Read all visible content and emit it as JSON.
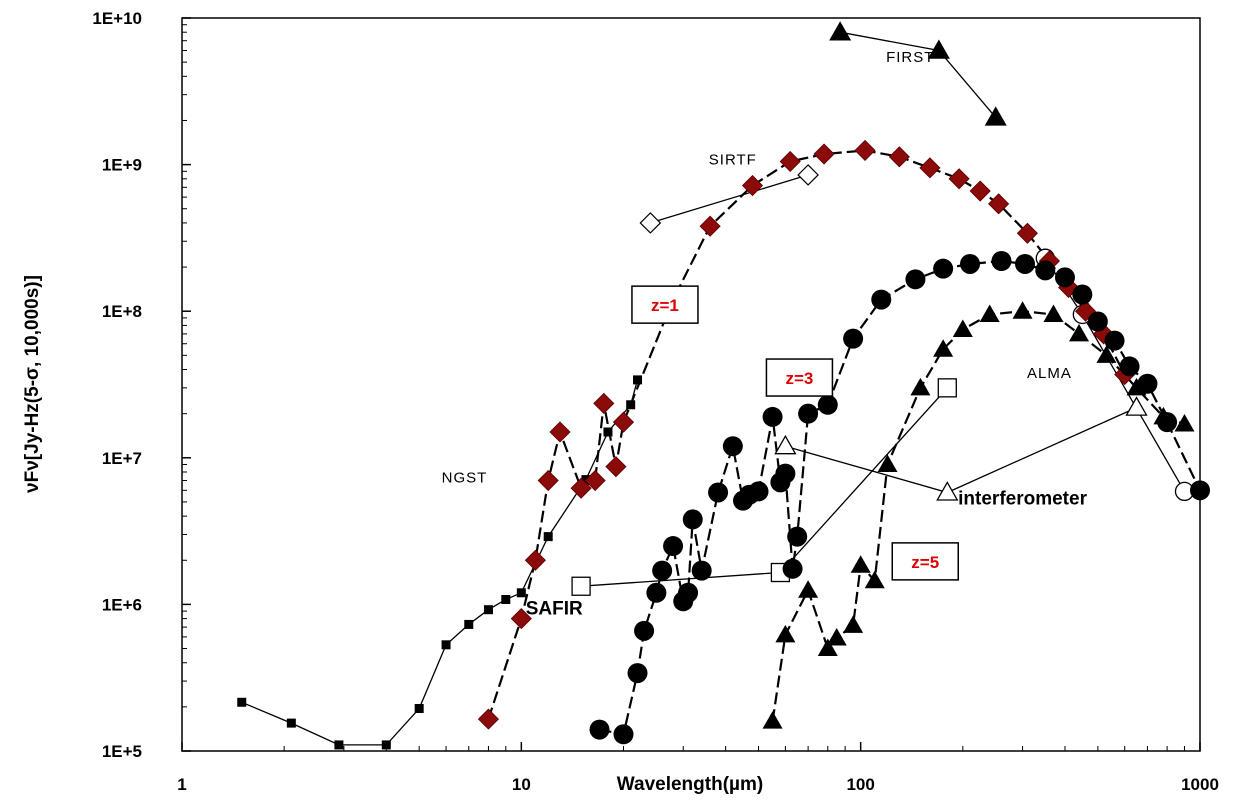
{
  "chart_data": {
    "type": "line",
    "title": "",
    "xlabel": "Wavelength(µm)",
    "ylabel": "νFν[Jy-Hz(5-σ, 10,000s)]",
    "xscale": "log",
    "yscale": "log",
    "xlim": [
      1,
      1000
    ],
    "ylim": [
      100000,
      10000000000
    ],
    "grid": false,
    "x_ticks": [
      {
        "value": 1,
        "label": "1"
      },
      {
        "value": 10,
        "label": "10"
      },
      {
        "value": 100,
        "label": "100"
      },
      {
        "value": 1000,
        "label": "1000"
      }
    ],
    "y_ticks": [
      {
        "value": 100000,
        "label": "1E+5"
      },
      {
        "value": 1000000,
        "label": "1E+6"
      },
      {
        "value": 10000000,
        "label": "1E+7"
      },
      {
        "value": 100000000,
        "label": "1E+8"
      },
      {
        "value": 1000000000,
        "label": "1E+9"
      },
      {
        "value": 10000000000,
        "label": "1E+10"
      }
    ],
    "annotations": [
      {
        "text": "FIRST",
        "x": 140,
        "y": 5000000000,
        "style": "plain"
      },
      {
        "text": "SIRTF",
        "x": 42,
        "y": 1000000000,
        "style": "plain"
      },
      {
        "text": "NGST",
        "x": 6.8,
        "y": 6800000,
        "style": "plain"
      },
      {
        "text": "ALMA",
        "x": 360,
        "y": 35000000,
        "style": "plain"
      },
      {
        "text": "SAFIR",
        "x": 12.5,
        "y": 850000,
        "style": "bold"
      },
      {
        "text": "interferometer",
        "x": 300,
        "y": 4800000,
        "style": "bold"
      },
      {
        "text": "z=1",
        "x": 26.5,
        "y": 110000000,
        "style": "box"
      },
      {
        "text": "z=3",
        "x": 66,
        "y": 35000000,
        "style": "box"
      },
      {
        "text": "z=5",
        "x": 155,
        "y": 1950000,
        "style": "box"
      }
    ],
    "series": [
      {
        "type": "instrument",
        "line": "solid",
        "marker": "filled-triangle",
        "size": 22,
        "points": [
          [
            87,
            8000000000
          ],
          [
            170,
            6000000000
          ],
          [
            250,
            2100000000
          ]
        ]
      },
      {
        "type": "instrument",
        "line": "solid",
        "marker": "open-diamond",
        "size": 20,
        "points": [
          [
            24,
            400000000
          ],
          [
            70,
            850000000
          ]
        ]
      },
      {
        "type": "instrument",
        "line": "solid",
        "marker": "filled-square-small",
        "size": 9,
        "points": [
          [
            1.5,
            215000
          ],
          [
            2.1,
            155000
          ],
          [
            2.9,
            110000
          ],
          [
            4,
            110000
          ],
          [
            5,
            195000
          ],
          [
            6,
            530000
          ],
          [
            7,
            730000
          ],
          [
            8,
            920000
          ],
          [
            9,
            1080000
          ],
          [
            10,
            1200000
          ],
          [
            12,
            2900000
          ],
          [
            15.5,
            7100000
          ],
          [
            18,
            15000000
          ],
          [
            21,
            23000000
          ],
          [
            22,
            34000000
          ]
        ]
      },
      {
        "type": "instrument",
        "line": "solid",
        "marker": "open-square",
        "size": 18,
        "points": [
          [
            15,
            1330000
          ],
          [
            58,
            1650000
          ],
          [
            180,
            30000000
          ]
        ]
      },
      {
        "type": "instrument",
        "line": "solid",
        "marker": "open-triangle",
        "size": 20,
        "points": [
          [
            60,
            12000000
          ],
          [
            180,
            5800000
          ],
          [
            650,
            22000000
          ]
        ]
      },
      {
        "type": "instrument",
        "line": "solid",
        "marker": "open-circle",
        "size": 18,
        "points": [
          [
            350,
            230000000
          ],
          [
            450,
            95000000
          ],
          [
            900,
            5900000
          ]
        ]
      },
      {
        "type": "model-z1",
        "line": "dashed",
        "marker": "filled-diamond",
        "size": 20,
        "points": [
          [
            8,
            165000
          ],
          [
            10,
            800000
          ],
          [
            11,
            2000000
          ],
          [
            12,
            7000000
          ],
          [
            13,
            15000000
          ],
          [
            15,
            6200000
          ],
          [
            16.5,
            7000000
          ],
          [
            17.5,
            23500000
          ],
          [
            19,
            8700000
          ],
          [
            20,
            17500000
          ],
          [
            28,
            120000000
          ],
          [
            36,
            380000000
          ],
          [
            48,
            720000000
          ],
          [
            62,
            1050000000
          ],
          [
            78,
            1180000000
          ],
          [
            103,
            1250000000
          ],
          [
            130,
            1130000000
          ],
          [
            160,
            950000000
          ],
          [
            195,
            800000000
          ],
          [
            225,
            660000000
          ],
          [
            255,
            540000000
          ],
          [
            310,
            340000000
          ],
          [
            360,
            220000000
          ],
          [
            410,
            145000000
          ],
          [
            460,
            100000000
          ],
          [
            520,
            70000000
          ],
          [
            600,
            37000000
          ]
        ]
      },
      {
        "type": "model-z3",
        "line": "dashed",
        "marker": "filled-circle",
        "size": 20,
        "points": [
          [
            17,
            140000
          ],
          [
            20,
            130000
          ],
          [
            22,
            340000
          ],
          [
            23,
            660000
          ],
          [
            25,
            1200000
          ],
          [
            26,
            1700000
          ],
          [
            28,
            2500000
          ],
          [
            30,
            1050000
          ],
          [
            31,
            1200000
          ],
          [
            32,
            3800000
          ],
          [
            34,
            1700000
          ],
          [
            38,
            5800000
          ],
          [
            42,
            12000000
          ],
          [
            45,
            5100000
          ],
          [
            47,
            5600000
          ],
          [
            50,
            5900000
          ],
          [
            55,
            19000000
          ],
          [
            58,
            6800000
          ],
          [
            60,
            7800000
          ],
          [
            63,
            1750000
          ],
          [
            65,
            2900000
          ],
          [
            70,
            20000000
          ],
          [
            80,
            23000000
          ],
          [
            95,
            65000000
          ],
          [
            115,
            120000000
          ],
          [
            145,
            165000000
          ],
          [
            175,
            195000000
          ],
          [
            210,
            210000000
          ],
          [
            260,
            220000000
          ],
          [
            305,
            210000000
          ],
          [
            350,
            190000000
          ],
          [
            400,
            170000000
          ],
          [
            450,
            130000000
          ],
          [
            500,
            85000000
          ],
          [
            560,
            63000000
          ],
          [
            620,
            42000000
          ],
          [
            700,
            32000000
          ],
          [
            800,
            17500000
          ],
          [
            1000,
            6000000
          ]
        ]
      },
      {
        "type": "model-z5",
        "line": "dashed",
        "marker": "filled-triangle",
        "size": 20,
        "points": [
          [
            55,
            160000
          ],
          [
            60,
            620000
          ],
          [
            70,
            1250000
          ],
          [
            80,
            500000
          ],
          [
            85,
            590000
          ],
          [
            95,
            720000
          ],
          [
            100,
            1850000
          ],
          [
            110,
            1450000
          ],
          [
            120,
            9000000
          ],
          [
            150,
            30000000
          ],
          [
            175,
            55000000
          ],
          [
            200,
            75000000
          ],
          [
            240,
            95000000
          ],
          [
            300,
            100000000
          ],
          [
            370,
            95000000
          ],
          [
            440,
            70000000
          ],
          [
            530,
            50000000
          ],
          [
            650,
            30000000
          ],
          [
            780,
            19000000
          ],
          [
            900,
            17000000
          ]
        ]
      }
    ]
  }
}
